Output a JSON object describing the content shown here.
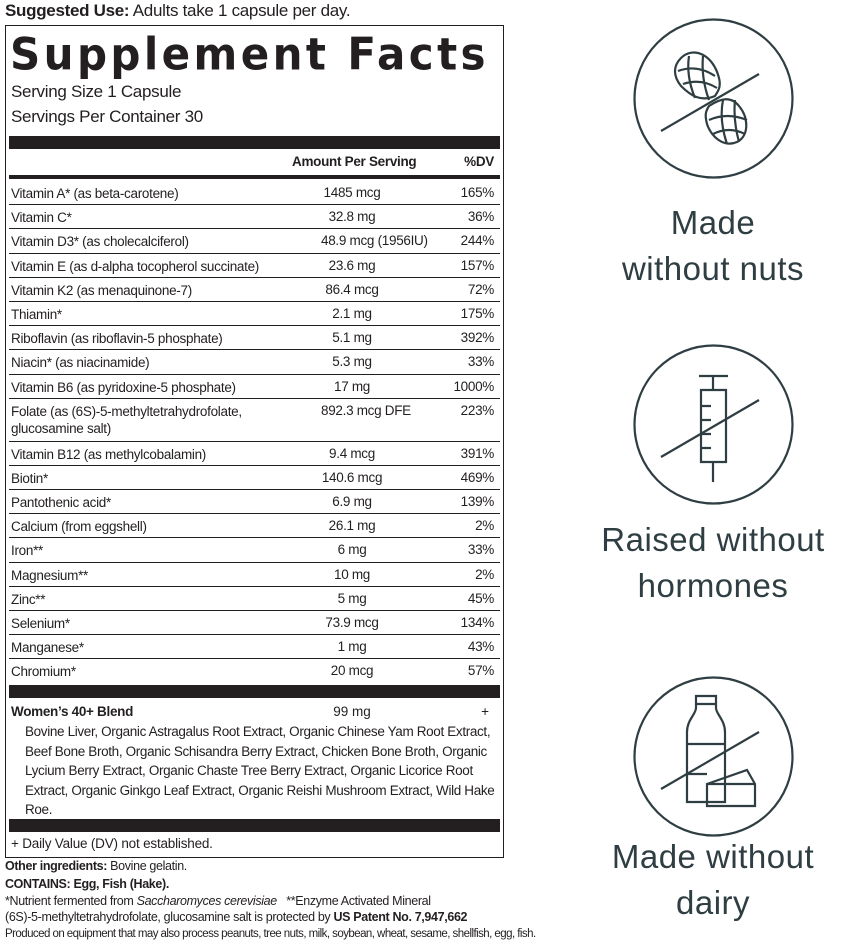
{
  "suggested_use": {
    "label": "Suggested Use:",
    "text": " Adults take 1 capsule per day."
  },
  "facts": {
    "title": "Supplement Facts",
    "serving_size": "Serving Size 1 Capsule",
    "servings_per_container": "Servings Per Container 30",
    "header_amount": "Amount Per Serving",
    "header_dv": "%DV",
    "rows": [
      {
        "name": "Vitamin A* (as beta-carotene)",
        "amount": "1485 mcg",
        "dv": "165%"
      },
      {
        "name": "Vitamin C*",
        "amount": "32.8 mg",
        "dv": "36%"
      },
      {
        "name": "Vitamin D3* (as cholecalciferol)",
        "amount": "48.9 mcg (1956IU)",
        "dv": "244%"
      },
      {
        "name": "Vitamin E (as d-alpha tocopherol succinate)",
        "amount": "23.6 mg",
        "dv": "157%"
      },
      {
        "name": "Vitamin K2 (as menaquinone-7)",
        "amount": "86.4 mcg",
        "dv": "72%"
      },
      {
        "name": "Thiamin*",
        "amount": "2.1 mg",
        "dv": "175%"
      },
      {
        "name": "Riboflavin (as riboflavin-5 phosphate)",
        "amount": "5.1 mg",
        "dv": "392%"
      },
      {
        "name": "Niacin* (as niacinamide)",
        "amount": "5.3 mg",
        "dv": "33%"
      },
      {
        "name": "Vitamin B6 (as pyridoxine-5 phosphate)",
        "amount": "17 mg",
        "dv": "1000%"
      },
      {
        "name": "Folate (as (6S)-5-methyltetrahydrofolate, glucosamine salt)",
        "amount": "892.3 mcg DFE",
        "dv": "223%"
      },
      {
        "name": "Vitamin B12 (as methylcobalamin)",
        "amount": "9.4 mcg",
        "dv": "391%"
      },
      {
        "name": "Biotin*",
        "amount": "140.6 mcg",
        "dv": "469%"
      },
      {
        "name": "Pantothenic acid*",
        "amount": "6.9 mg",
        "dv": "139%"
      },
      {
        "name": "Calcium (from eggshell)",
        "amount": "26.1 mg",
        "dv": "2%"
      },
      {
        "name": "Iron**",
        "amount": "6 mg",
        "dv": "33%"
      },
      {
        "name": "Magnesium**",
        "amount": "10 mg",
        "dv": "2%"
      },
      {
        "name": "Zinc**",
        "amount": "5 mg",
        "dv": "45%"
      },
      {
        "name": "Selenium*",
        "amount": "73.9 mcg",
        "dv": "134%"
      },
      {
        "name": "Manganese*",
        "amount": "1 mg",
        "dv": "43%"
      },
      {
        "name": "Chromium*",
        "amount": "20 mcg",
        "dv": "57%"
      }
    ],
    "blend": {
      "name": "Women’s 40+ Blend",
      "amount": "99 mg",
      "dv": "+",
      "ingredients": "Bovine Liver, Organic Astragalus Root Extract, Organic Chinese Yam Root Extract, Beef Bone Broth, Organic Schisandra Berry Extract, Chicken Bone Broth, Organic Lycium Berry Extract, Organic Chaste Tree Berry Extract, Organic Licorice Root Extract, Organic Ginkgo Leaf Extract, Organic Reishi Mushroom Extract, Wild Hake Roe."
    },
    "footnote": "+ Daily Value (DV) not established."
  },
  "other": {
    "other_label": "Other ingredients:",
    "other_text": " Bovine gelatin.",
    "contains": "CONTAINS: Egg, Fish (Hake).",
    "nutrient_a": "*Nutrient fermented from ",
    "nutrient_italic": "Saccharomyces cerevisiae",
    "nutrient_b": "   **Enzyme Activated Mineral",
    "patent_text": "(6S)-5-methyltetrahydrofolate, glucosamine salt is protected by ",
    "patent_bold": "US Patent No. 7,947,662",
    "produced": "Produced on equipment that may also process peanuts, tree nuts, milk, soybean, wheat, sesame, shellfish, egg, fish."
  },
  "claims": [
    {
      "icon": "no-nuts-icon",
      "line1": "Made",
      "line2": "without nuts"
    },
    {
      "icon": "no-hormones-icon",
      "line1": "Raised without",
      "line2": "hormones"
    },
    {
      "icon": "no-dairy-icon",
      "line1": "Made without",
      "line2": "dairy"
    }
  ],
  "colors": {
    "label_ink": "#231f20",
    "claim_ink": "#2f3e42"
  }
}
